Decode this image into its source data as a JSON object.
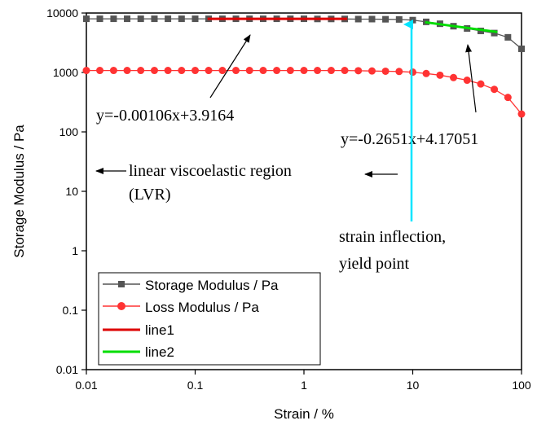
{
  "chart_data": {
    "type": "scatter",
    "xlabel": "Strain / %",
    "ylabel": "Storage Modulus / Pa",
    "xscale": "log",
    "yscale": "log",
    "xlim": [
      0.01,
      100
    ],
    "ylim": [
      0.01,
      10000
    ],
    "x_ticks": [
      "0.01",
      "0.1",
      "1",
      "10",
      "100"
    ],
    "y_ticks": [
      "0.01",
      "0.1",
      "1",
      "10",
      "100",
      "1000",
      "10000"
    ],
    "legend_position": "bottom-left",
    "series": [
      {
        "name": "Storage Modulus / Pa",
        "color": "#555555",
        "marker": "square",
        "x": [
          0.01,
          0.0133,
          0.0178,
          0.0237,
          0.0316,
          0.0422,
          0.0562,
          0.075,
          0.1,
          0.133,
          0.178,
          0.237,
          0.316,
          0.422,
          0.562,
          0.75,
          1,
          1.33,
          1.78,
          2.37,
          3.16,
          4.22,
          5.62,
          7.5,
          10,
          13.3,
          17.8,
          23.7,
          31.6,
          42.2,
          56.2,
          75,
          100
        ],
        "y": [
          8000,
          8000,
          8000,
          8000,
          8000,
          8000,
          8000,
          8000,
          8000,
          8000,
          8000,
          8000,
          8000,
          8000,
          8000,
          8000,
          8000,
          7950,
          7950,
          7950,
          7900,
          7900,
          7850,
          7800,
          7600,
          7100,
          6600,
          6000,
          5500,
          5000,
          4600,
          3900,
          2500
        ]
      },
      {
        "name": "Loss Modulus / Pa",
        "color": "#ff3333",
        "marker": "circle",
        "x": [
          0.01,
          0.0133,
          0.0178,
          0.0237,
          0.0316,
          0.0422,
          0.0562,
          0.075,
          0.1,
          0.133,
          0.178,
          0.237,
          0.316,
          0.422,
          0.562,
          0.75,
          1,
          1.33,
          1.78,
          2.37,
          3.16,
          4.22,
          5.62,
          7.5,
          10,
          13.3,
          17.8,
          23.7,
          31.6,
          42.2,
          56.2,
          75,
          100
        ],
        "y": [
          1080,
          1080,
          1080,
          1080,
          1080,
          1080,
          1080,
          1080,
          1080,
          1080,
          1080,
          1080,
          1080,
          1080,
          1080,
          1080,
          1080,
          1080,
          1080,
          1080,
          1070,
          1060,
          1050,
          1040,
          1010,
          960,
          900,
          820,
          740,
          640,
          520,
          380,
          200
        ]
      },
      {
        "name": "line1",
        "color": "#dd0000",
        "marker": "none",
        "x": [
          0.13,
          2.5
        ],
        "y": [
          8000,
          8000
        ]
      },
      {
        "name": "line2",
        "color": "#00dd00",
        "marker": "none",
        "x": [
          13,
          60
        ],
        "y": [
          7000,
          4800
        ]
      }
    ],
    "annotations": [
      {
        "text": "y=-0.00106x+3.9164"
      },
      {
        "text": "y=-0.2651x+4.17051"
      },
      {
        "text": "linear viscoelastic region"
      },
      {
        "text": "(LVR)"
      },
      {
        "text": "strain inflection,"
      },
      {
        "text": "yield point"
      }
    ]
  }
}
